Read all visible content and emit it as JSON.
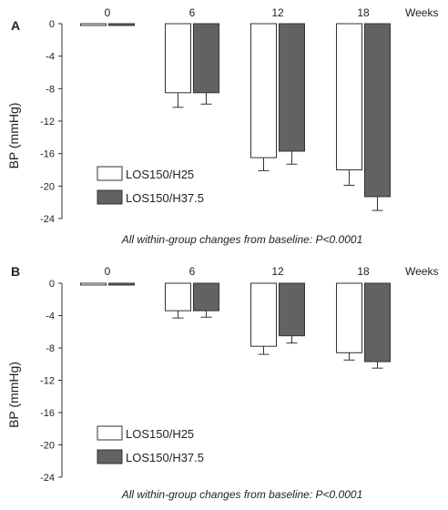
{
  "chart_data": [
    {
      "type": "bar",
      "panel_label": "A",
      "x_unit_label": "Weeks",
      "categories": [
        "0",
        "6",
        "12",
        "18"
      ],
      "ylabel": "BP (mmHg)",
      "ylim": [
        -24,
        0
      ],
      "yticks": [
        0,
        -4,
        -8,
        -12,
        -16,
        -20,
        -24
      ],
      "series": [
        {
          "name": "LOS150/H25",
          "color": "#ffffff",
          "values": [
            0,
            -8.5,
            -16.5,
            -18.0
          ],
          "error": [
            0,
            1.8,
            1.6,
            1.9
          ]
        },
        {
          "name": "LOS150/H37.5",
          "color": "#616264",
          "values": [
            0,
            -8.5,
            -15.7,
            -21.3
          ],
          "error": [
            0,
            1.4,
            1.6,
            1.7
          ]
        }
      ],
      "annotation": "All within-group changes from baseline: P<0.0001"
    },
    {
      "type": "bar",
      "panel_label": "B",
      "x_unit_label": "Weeks",
      "categories": [
        "0",
        "6",
        "12",
        "18"
      ],
      "ylabel": "BP (mmHg)",
      "ylim": [
        -24,
        0
      ],
      "yticks": [
        0,
        -4,
        -8,
        -12,
        -16,
        -20,
        -24
      ],
      "series": [
        {
          "name": "LOS150/H25",
          "color": "#ffffff",
          "values": [
            0,
            -3.4,
            -7.8,
            -8.6
          ],
          "error": [
            0,
            0.9,
            1.0,
            0.9
          ]
        },
        {
          "name": "LOS150/H37.5",
          "color": "#616264",
          "values": [
            0,
            -3.4,
            -6.5,
            -9.7
          ],
          "error": [
            0,
            0.8,
            0.9,
            0.8
          ]
        }
      ],
      "annotation": "All within-group changes from baseline: P<0.0001"
    }
  ]
}
